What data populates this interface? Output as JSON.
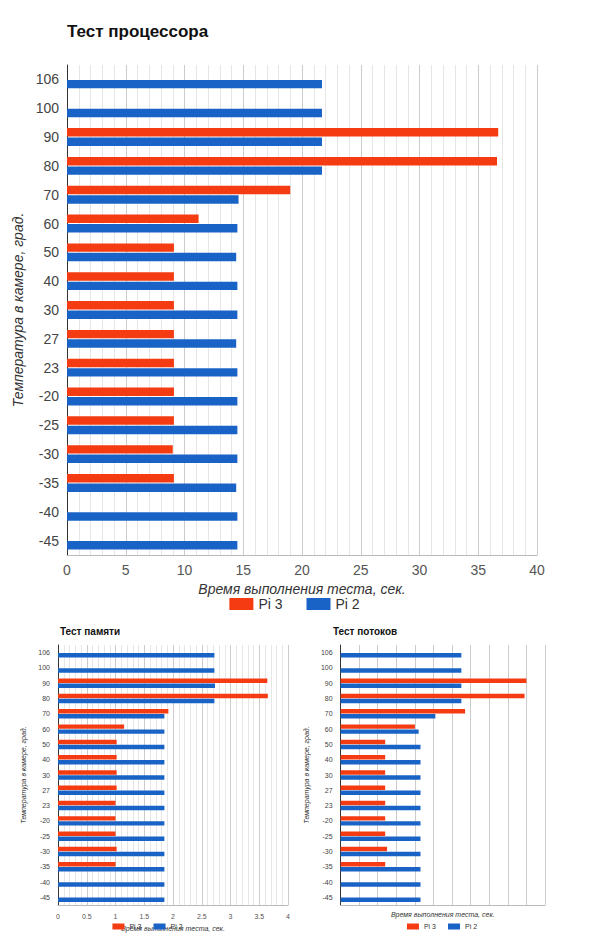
{
  "chart_data": [
    {
      "type": "bar",
      "orientation": "horizontal",
      "title": "Тест процессора",
      "xlabel": "Время выполнения теста, сек.",
      "ylabel": "Температура в камере, град.",
      "categories": [
        "106",
        "100",
        "90",
        "80",
        "70",
        "60",
        "50",
        "40",
        "30",
        "27",
        "23",
        "-20",
        "-25",
        "-30",
        "-35",
        "-40",
        "-45"
      ],
      "series": [
        {
          "name": "Pi 3",
          "color": "#f53b12",
          "values": [
            null,
            null,
            36.7,
            36.6,
            19.0,
            11.2,
            9.1,
            9.1,
            9.1,
            9.1,
            9.1,
            9.1,
            9.1,
            9.0,
            9.1,
            null,
            null
          ]
        },
        {
          "name": "Pi 2",
          "color": "#1a63c6",
          "values": [
            21.7,
            21.7,
            21.7,
            21.7,
            14.6,
            14.5,
            14.4,
            14.5,
            14.5,
            14.4,
            14.5,
            14.5,
            14.5,
            14.5,
            14.4,
            14.5,
            14.5
          ]
        }
      ],
      "xlim": [
        0,
        40
      ],
      "xticks": [
        0,
        5,
        10,
        15,
        20,
        25,
        30,
        35,
        40
      ],
      "grid": true,
      "legend": "bottom"
    },
    {
      "type": "bar",
      "orientation": "horizontal",
      "title": "Тест памяти",
      "xlabel": "Время выполнения теста, сек.",
      "ylabel": "Температура в камере, град.",
      "categories": [
        "106",
        "100",
        "90",
        "80",
        "70",
        "60",
        "50",
        "40",
        "30",
        "27",
        "23",
        "-20",
        "-25",
        "-30",
        "-35",
        "-40",
        "-45"
      ],
      "series": [
        {
          "name": "Pi 3",
          "color": "#f53b12",
          "values": [
            null,
            null,
            3.64,
            3.65,
            1.92,
            1.15,
            1.02,
            1.02,
            1.02,
            1.02,
            1.0,
            1.0,
            1.0,
            1.02,
            1.0,
            null,
            null
          ]
        },
        {
          "name": "Pi 2",
          "color": "#1a63c6",
          "values": [
            2.72,
            2.72,
            2.73,
            2.72,
            1.85,
            1.85,
            1.85,
            1.85,
            1.85,
            1.85,
            1.85,
            1.85,
            1.85,
            1.85,
            1.85,
            1.85,
            1.85
          ]
        }
      ],
      "xlim": [
        0,
        4
      ],
      "xticks": [
        0,
        0.5,
        1,
        1.5,
        2,
        2.5,
        3,
        3.5,
        4
      ],
      "grid": true,
      "legend": "bottom"
    },
    {
      "type": "bar",
      "orientation": "horizontal",
      "title": "Тест потоков",
      "xlabel": "Время выполнения теста, сек.",
      "ylabel": "Температура в камере, град.",
      "categories": [
        "106",
        "100",
        "90",
        "80",
        "70",
        "60",
        "50",
        "40",
        "30",
        "27",
        "23",
        "-20",
        "-25",
        "-30",
        "-35",
        "-40",
        "-45"
      ],
      "series": [
        {
          "name": "Pi 3",
          "color": "#f53b12",
          "values": [
            null,
            null,
            10.0,
            9.9,
            6.7,
            4.0,
            2.4,
            2.4,
            2.4,
            2.4,
            2.4,
            2.4,
            2.4,
            2.5,
            2.4,
            null,
            null
          ]
        },
        {
          "name": "Pi 2",
          "color": "#1a63c6",
          "values": [
            6.5,
            6.5,
            6.5,
            6.5,
            5.1,
            4.2,
            4.3,
            4.3,
            4.3,
            4.3,
            4.3,
            4.3,
            4.3,
            4.3,
            4.3,
            4.3,
            4.3
          ]
        }
      ],
      "xlim": [
        0,
        11
      ],
      "xticks": [
        0,
        1,
        2,
        3,
        4,
        5,
        6,
        7,
        8,
        9,
        10,
        11
      ],
      "tick_labels": "y",
      "grid": true,
      "legend": "bottom"
    }
  ]
}
